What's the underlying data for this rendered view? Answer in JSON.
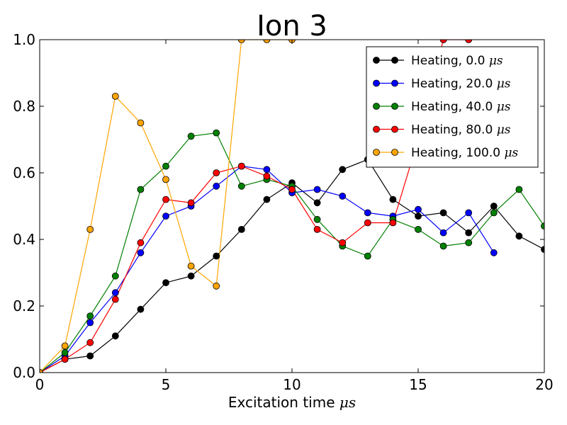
{
  "chart_data": {
    "type": "line",
    "title": "Ion 3",
    "xlabel_text": "Excitation time ",
    "xlabel_math": "μs",
    "xlim": [
      0,
      20
    ],
    "ylim": [
      0.0,
      1.0
    ],
    "xticks": [
      0,
      5,
      10,
      15,
      20
    ],
    "xtick_labels": [
      "0",
      "5",
      "10",
      "15",
      "20"
    ],
    "yticks": [
      0.0,
      0.2,
      0.4,
      0.6,
      0.8,
      1.0
    ],
    "ytick_labels": [
      "0.0",
      "0.2",
      "0.4",
      "0.6",
      "0.8",
      "1.0"
    ],
    "grid": false,
    "legend_position": "top-right",
    "series": [
      {
        "name": "Heating, 0.0 ",
        "unit": "μs",
        "color": "#000000",
        "x": [
          0,
          1,
          2,
          3,
          4,
          5,
          6,
          7,
          8,
          9,
          10,
          11,
          12,
          13,
          14,
          15,
          16,
          17,
          18,
          19,
          20
        ],
        "y": [
          0.0,
          0.04,
          0.05,
          0.11,
          0.19,
          0.27,
          0.29,
          0.35,
          0.43,
          0.52,
          0.57,
          0.51,
          0.61,
          0.64,
          0.52,
          0.47,
          0.48,
          0.42,
          0.5,
          0.41,
          0.37
        ]
      },
      {
        "name": "Heating, 20.0 ",
        "unit": "μs",
        "color": "#0000ff",
        "x": [
          0,
          1,
          2,
          3,
          4,
          5,
          6,
          7,
          8,
          9,
          10,
          11,
          12,
          13,
          14,
          15,
          16,
          17,
          18
        ],
        "y": [
          0.0,
          0.05,
          0.15,
          0.24,
          0.36,
          0.47,
          0.5,
          0.56,
          0.62,
          0.61,
          0.54,
          0.55,
          0.53,
          0.48,
          0.47,
          0.49,
          0.42,
          0.48,
          0.36
        ]
      },
      {
        "name": "Heating, 40.0 ",
        "unit": "μs",
        "color": "#008000",
        "x": [
          0,
          1,
          2,
          3,
          4,
          5,
          6,
          7,
          8,
          9,
          10,
          11,
          12,
          13,
          14,
          15,
          16,
          17,
          18,
          19,
          20
        ],
        "y": [
          0.0,
          0.06,
          0.17,
          0.29,
          0.55,
          0.62,
          0.71,
          0.72,
          0.56,
          0.58,
          0.56,
          0.46,
          0.38,
          0.35,
          0.46,
          0.43,
          0.38,
          0.39,
          0.48,
          0.55,
          0.44
        ]
      },
      {
        "name": "Heating, 80.0 ",
        "unit": "μs",
        "color": "#ff0000",
        "x": [
          0,
          1,
          2,
          3,
          4,
          5,
          6,
          7,
          8,
          9,
          10,
          11,
          12,
          13,
          14,
          15,
          16,
          17
        ],
        "y": [
          0.0,
          0.04,
          0.09,
          0.22,
          0.39,
          0.52,
          0.51,
          0.6,
          0.62,
          0.59,
          0.55,
          0.43,
          0.39,
          0.45,
          0.45,
          0.7,
          1.0,
          1.0
        ]
      },
      {
        "name": "Heating, 100.0 ",
        "unit": "μs",
        "color": "#ffa500",
        "x": [
          0,
          1,
          2,
          3,
          4,
          5,
          6,
          7,
          8,
          9,
          10
        ],
        "y": [
          0.0,
          0.08,
          0.43,
          0.83,
          0.75,
          0.58,
          0.32,
          0.26,
          1.0,
          1.0,
          1.0
        ]
      }
    ]
  }
}
